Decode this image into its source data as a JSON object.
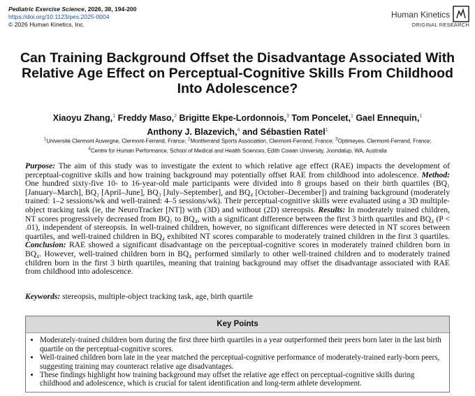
{
  "header": {
    "journal": "Pediatric Exercise Science",
    "citation": ", 2026, 38, 194-200",
    "doi": "https://doi.org/10.1123/pes.2025-0004",
    "copyright": "© 2026 Human Kinetics, Inc.",
    "publisher": "Human Kinetics",
    "article_type": "ORIGINAL RESEARCH"
  },
  "title": "Can Training Background Offset the Disadvantage Associated With Relative Age Effect on Perceptual-Cognitive Skills From Childhood Into Adolescence?",
  "authors": [
    [
      {
        "name": "Xiaoyu Zhang,",
        "aff": "1"
      },
      {
        "name": "Freddy Maso,",
        "aff": "2"
      },
      {
        "name": "Brigitte Ekpe-Lordonnois,",
        "aff": "3"
      },
      {
        "name": "Tom Poncelet,",
        "aff": "1"
      },
      {
        "name": "Gael Ennequin,",
        "aff": "1"
      }
    ],
    [
      {
        "name": "Anthony J. Blazevich,",
        "aff": "4"
      },
      {
        "name": "and Sébastien Ratel",
        "aff": "1"
      }
    ]
  ],
  "affiliations": [
    [
      {
        "num": "1",
        "text": "Université Clermont Auvergne, Clermont-Ferrand, France;"
      },
      {
        "num": "2",
        "text": "Montferrand Sports Association, Clermont-Ferrand, France;"
      },
      {
        "num": "3",
        "text": "Optimeyes, Clermont-Ferrand, France;"
      }
    ],
    [
      {
        "num": "4",
        "text": "Centre for Human Performance, School of Medical and Health Sciences, Edith Cowan University, Joondalup, WA, Australia"
      }
    ]
  ],
  "abstract": [
    {
      "label": "Purpose:",
      "text": "The aim of this study was to investigate the extent to which relative age effect (RAE) impacts the development of perceptual-cognitive skills and how training background may potentially offset RAE from childhood into adolescence."
    },
    {
      "label": "Method:",
      "text": "One hundred sixty-five 10- to 16-year-old male participants were divided into 8 groups based on their birth quartiles (BQ₁ [January–March], BQ₂ [April–June], BQ₃ [July–September], and BQ₄ [October–December]) and training background (moderately trained: 1–2 sessions/wk and well-trained: 4–5 sessions/wk). Their perceptual-cognitive skills were evaluated using a 3D multiple-object tracking task (ie, the NeuroTracker [NT]) with (3D) and without (2D) stereopsis."
    },
    {
      "label": "Results:",
      "text": "In moderately trained children, NT scores progressively decreased from BQ₁ to BQ₄, with a significant difference between the first 3 birth quartiles and BQ₄ (P < .01), independent of stereopsis. In well-trained children, however, no significant differences were detected in NT scores between quartiles, and well-trained children in BQ₄ exhibited NT scores comparable to moderately trained children in the first 3 quartiles."
    },
    {
      "label": "Conclusion:",
      "text": "RAE showed a significant disadvantage on the perceptual-cognitive scores in moderately trained children born in BQ₄. However, well-trained children born in BQ₄ performed similarly to other well-trained children and to moderately trained children born in the first 3 birth quartiles, meaning that training background may offset the disadvantage associated with RAE from childhood into adolescence."
    }
  ],
  "keywords": {
    "label": "Keywords:",
    "text": "stereopsis, multiple-object tracking task, age, birth quartile"
  },
  "key_points": {
    "title": "Key Points",
    "items": [
      "Moderately-trained children born during the first three birth quartiles in a year outperformed their peers born later in the last birth quartile on the perceptual-cognitive scores.",
      "Well-trained children born late in the year matched the perceptual-cognitive performance of moderately-trained early-born peers, suggesting training may counteract relative age disadvantages.",
      "These findings highlight how training background may offset the relative age effect on perceptual-cognitive skills during childhood and adolescence, which is crucial for talent identification and long-term athlete development."
    ]
  }
}
